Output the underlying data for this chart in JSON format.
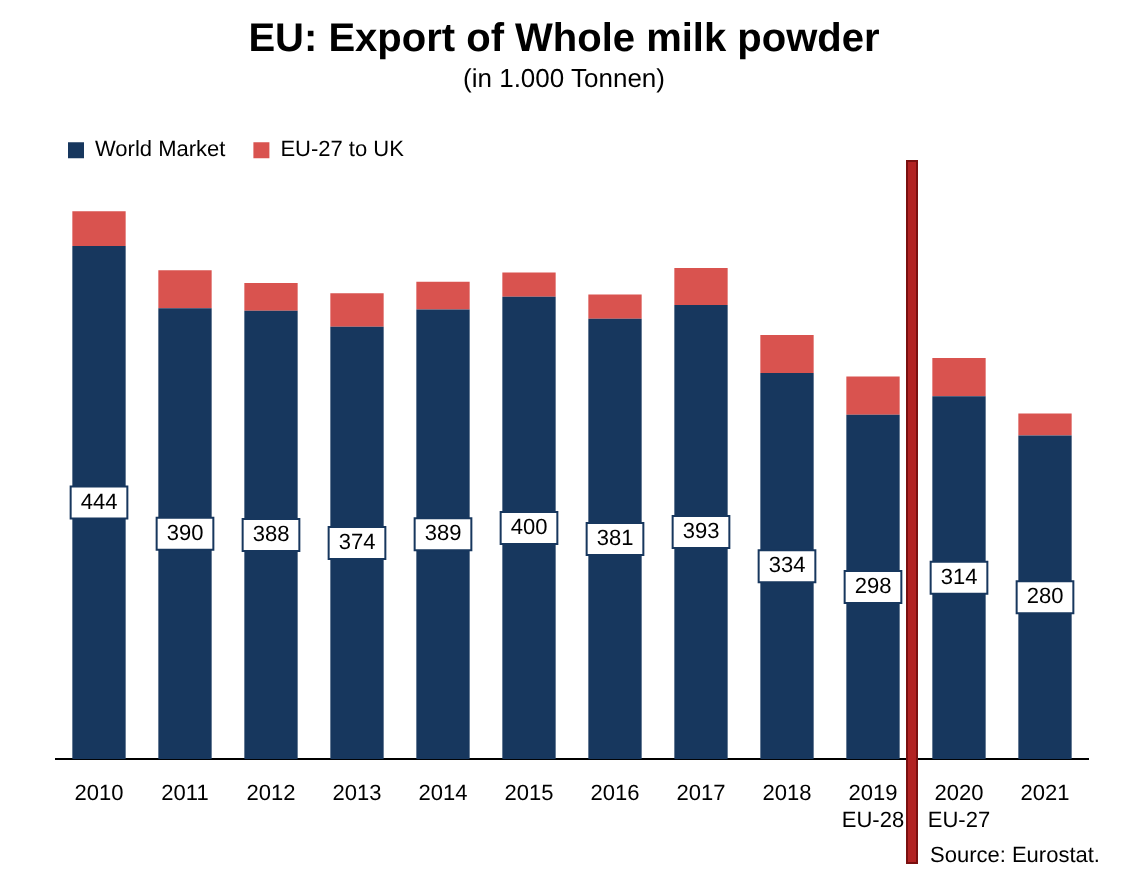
{
  "chart_data": {
    "type": "bar",
    "title": "EU: Export of Whole milk powder",
    "subtitle": "(in 1.000 Tonnen)",
    "categories": [
      "2010",
      "2011",
      "2012",
      "2013",
      "2014",
      "2015",
      "2016",
      "2017",
      "2018",
      "2019\nEU-28",
      "2020\nEU-27",
      "2021"
    ],
    "series": [
      {
        "name": "World Market",
        "color": "#17375e",
        "values": [
          444,
          390,
          388,
          374,
          389,
          400,
          381,
          393,
          334,
          298,
          314,
          280
        ],
        "value_labels": [
          "444",
          "390",
          "388",
          "374",
          "389",
          "400",
          "381",
          "393",
          "334",
          "298",
          "314",
          "280"
        ]
      },
      {
        "name": "EU-27 to UK",
        "color": "#d9534f",
        "values": [
          30,
          33,
          24,
          29,
          24,
          21,
          21,
          32,
          33,
          33,
          33,
          19
        ]
      }
    ],
    "stacked": true,
    "tick_labels": "x",
    "grid": false,
    "legend": "top left",
    "annotations": [
      "Source: Eurostat."
    ]
  }
}
